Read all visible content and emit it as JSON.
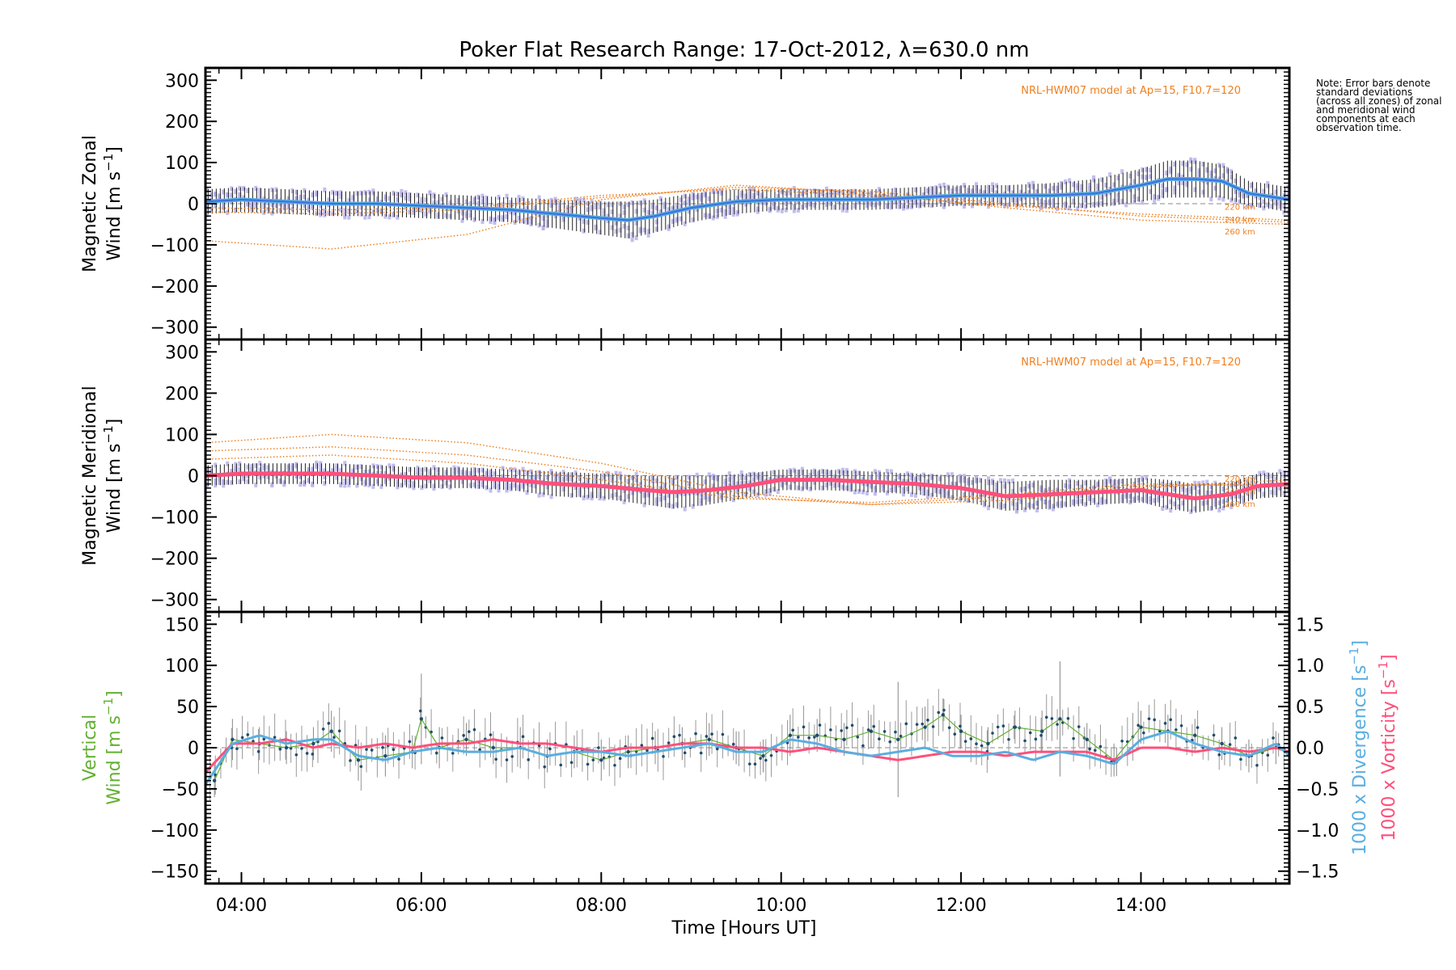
{
  "title": "Poker Flat Research Range: 17-Oct-2012, λ=630.0 nm",
  "note": "Note: Error bars denote standard deviations (across all zones) of zonal and meridional wind components at each observation time.",
  "xaxis": {
    "label": "Time [Hours UT]",
    "range": [
      3.6,
      15.65
    ],
    "ticks": [
      4,
      6,
      8,
      10,
      12,
      14
    ],
    "tick_labels": [
      "04:00",
      "06:00",
      "08:00",
      "10:00",
      "12:00",
      "14:00"
    ]
  },
  "colors": {
    "zonal_mean": "#3a6fe0",
    "zonal_smooth": "#5aaee0",
    "meridional_smooth": "#ff4f7b",
    "vertical": "#62b031",
    "divergence": "#5aaee0",
    "vorticity": "#ff4f7b",
    "model": "#f08020",
    "zones": "#b7b3ea"
  },
  "chart_data": [
    {
      "type": "line",
      "name": "zonal",
      "ylabel_line1": "Magnetic Zonal",
      "ylabel_line2": "Wind [m s",
      "ylabel_sup": "−1",
      "ylabel_end": "]",
      "ylim": [
        -330,
        330
      ],
      "yticks": [
        -300,
        -200,
        -100,
        0,
        100,
        200,
        300
      ],
      "ytick_labels": [
        "−300",
        "−200",
        "−100",
        "0",
        "100",
        "200",
        "300"
      ],
      "model_label": "NRL-HWM07 model at Ap=15, F10.7=120",
      "model_curves": [
        {
          "label": "220 km",
          "x": [
            3.6,
            5.0,
            6.5,
            8.0,
            9.5,
            11.0,
            12.5,
            14.0,
            15.65
          ],
          "y": [
            -90,
            -110,
            -75,
            10,
            45,
            25,
            -10,
            -40,
            -50
          ]
        },
        {
          "label": "240 km",
          "x": [
            3.6,
            5.0,
            6.5,
            8.0,
            9.5,
            11.0,
            12.5,
            14.0,
            15.65
          ],
          "y": [
            -20,
            -25,
            -15,
            15,
            40,
            30,
            0,
            -30,
            -45
          ]
        },
        {
          "label": "260 km",
          "x": [
            3.6,
            5.0,
            6.5,
            8.0,
            9.5,
            11.0,
            12.5,
            14.0,
            15.65
          ],
          "y": [
            -10,
            -15,
            -10,
            20,
            35,
            20,
            -5,
            -25,
            -40
          ]
        }
      ],
      "mean_series": {
        "x": [
          3.6,
          4.0,
          4.5,
          5.0,
          5.5,
          6.0,
          6.5,
          7.0,
          7.5,
          8.0,
          8.3,
          8.6,
          9.0,
          9.5,
          10.0,
          10.5,
          11.0,
          11.5,
          12.0,
          12.5,
          13.0,
          13.5,
          14.0,
          14.3,
          14.6,
          14.9,
          15.2,
          15.65
        ],
        "y": [
          5,
          10,
          5,
          0,
          0,
          -5,
          -10,
          -15,
          -25,
          -35,
          -40,
          -30,
          -10,
          5,
          10,
          10,
          10,
          15,
          20,
          20,
          20,
          25,
          45,
          60,
          60,
          55,
          25,
          10
        ],
        "sd": [
          30,
          30,
          30,
          30,
          30,
          30,
          30,
          30,
          35,
          40,
          45,
          40,
          35,
          30,
          25,
          25,
          25,
          25,
          25,
          25,
          30,
          35,
          40,
          45,
          45,
          40,
          30,
          30
        ]
      }
    },
    {
      "type": "line",
      "name": "meridional",
      "ylabel_line1": "Magnetic Meridional",
      "ylabel_line2": "Wind [m s",
      "ylabel_sup": "−1",
      "ylabel_end": "]",
      "ylim": [
        -330,
        330
      ],
      "yticks": [
        -300,
        -200,
        -100,
        0,
        100,
        200,
        300
      ],
      "ytick_labels": [
        "−300",
        "−200",
        "−100",
        "0",
        "100",
        "200",
        "300"
      ],
      "model_label": "NRL-HWM07 model at Ap=15, F10.7=120",
      "model_curves": [
        {
          "label": "220 km",
          "x": [
            3.6,
            5.0,
            6.5,
            8.0,
            9.5,
            11.0,
            12.5,
            14.0,
            15.65
          ],
          "y": [
            80,
            100,
            80,
            30,
            -40,
            -70,
            -60,
            -30,
            -10
          ]
        },
        {
          "label": "240 km",
          "x": [
            3.6,
            5.0,
            6.5,
            8.0,
            9.5,
            11.0,
            12.5,
            14.0,
            15.65
          ],
          "y": [
            60,
            70,
            50,
            10,
            -50,
            -70,
            -50,
            -25,
            -20
          ]
        },
        {
          "label": "260 km",
          "x": [
            3.6,
            5.0,
            6.5,
            8.0,
            9.5,
            11.0,
            12.5,
            14.0,
            15.65
          ],
          "y": [
            40,
            50,
            30,
            -10,
            -55,
            -65,
            -45,
            -20,
            -25
          ]
        }
      ],
      "mean_series": {
        "x": [
          3.6,
          4.0,
          4.5,
          5.0,
          5.5,
          6.0,
          6.5,
          7.0,
          7.5,
          8.0,
          8.5,
          8.8,
          9.2,
          9.6,
          10.0,
          10.5,
          11.0,
          11.5,
          12.0,
          12.5,
          13.0,
          13.5,
          14.0,
          14.3,
          14.6,
          15.0,
          15.3,
          15.65
        ],
        "y": [
          0,
          5,
          5,
          5,
          0,
          -5,
          -5,
          -10,
          -20,
          -25,
          -35,
          -40,
          -35,
          -25,
          -10,
          -10,
          -15,
          -20,
          -30,
          -50,
          -45,
          -40,
          -35,
          -45,
          -55,
          -45,
          -25,
          -20
        ],
        "sd": [
          25,
          25,
          25,
          25,
          25,
          25,
          25,
          25,
          30,
          30,
          35,
          40,
          35,
          30,
          25,
          25,
          25,
          25,
          30,
          35,
          35,
          30,
          30,
          35,
          35,
          30,
          30,
          30
        ]
      }
    },
    {
      "type": "line",
      "name": "vertical",
      "ylabel_line1": "Vertical",
      "ylabel_line2": "Wind [m s",
      "ylabel_sup": "−1",
      "ylabel_end": "]",
      "ylim": [
        -165,
        165
      ],
      "yticks": [
        -150,
        -100,
        -50,
        0,
        50,
        100,
        150
      ],
      "ytick_labels": [
        "−150",
        "−100",
        "−50",
        "0",
        "50",
        "100",
        "150"
      ],
      "y2lim": [
        -1.65,
        1.65
      ],
      "y2ticks": [
        -1.5,
        -1.0,
        -0.5,
        0.0,
        0.5,
        1.0,
        1.5
      ],
      "y2tick_labels": [
        "−1.5",
        "−1.0",
        "−0.5",
        "0.0",
        "0.5",
        "1.0",
        "1.5"
      ],
      "y2label_div": "1000 x Divergence [s",
      "y2label_vort": "1000 x Vorticity [s",
      "y2label_sup": "−1",
      "y2label_end": "]",
      "vertical_wind": {
        "x": [
          3.7,
          3.9,
          4.2,
          4.5,
          4.8,
          5.0,
          5.3,
          5.6,
          5.9,
          6.0,
          6.2,
          6.5,
          6.8,
          7.1,
          7.4,
          7.7,
          8.0,
          8.3,
          8.6,
          8.9,
          9.2,
          9.5,
          9.8,
          10.1,
          10.4,
          10.7,
          11.0,
          11.3,
          11.6,
          11.8,
          12.0,
          12.3,
          12.6,
          12.9,
          13.1,
          13.4,
          13.7,
          14.0,
          14.3,
          14.6,
          14.9,
          15.2,
          15.5
        ],
        "y": [
          -40,
          10,
          5,
          0,
          5,
          20,
          -15,
          -10,
          -5,
          35,
          0,
          10,
          0,
          0,
          -10,
          -5,
          -15,
          -5,
          0,
          5,
          10,
          0,
          -10,
          15,
          15,
          10,
          20,
          10,
          25,
          40,
          20,
          5,
          25,
          20,
          35,
          10,
          -15,
          25,
          20,
          15,
          5,
          -10,
          0
        ],
        "err": [
          20,
          25,
          20,
          20,
          20,
          25,
          25,
          25,
          20,
          55,
          25,
          20,
          20,
          25,
          20,
          20,
          25,
          20,
          20,
          20,
          20,
          20,
          20,
          25,
          20,
          20,
          20,
          70,
          25,
          20,
          20,
          20,
          20,
          25,
          70,
          20,
          20,
          20,
          20,
          20,
          20,
          20,
          20
        ]
      },
      "divergence": {
        "x": [
          3.6,
          3.9,
          4.2,
          4.5,
          4.8,
          5.0,
          5.3,
          5.6,
          5.9,
          6.2,
          6.5,
          6.8,
          7.1,
          7.4,
          7.7,
          8.0,
          8.3,
          8.6,
          8.9,
          9.2,
          9.5,
          9.8,
          10.1,
          10.4,
          10.7,
          11.0,
          11.3,
          11.6,
          11.9,
          12.2,
          12.5,
          12.8,
          13.1,
          13.4,
          13.7,
          14.0,
          14.3,
          14.6,
          14.9,
          15.2,
          15.5,
          15.65
        ],
        "y": [
          -0.45,
          0.05,
          0.15,
          0.05,
          0.1,
          0.1,
          -0.1,
          -0.15,
          -0.05,
          0.0,
          -0.05,
          -0.05,
          0.0,
          -0.1,
          -0.05,
          -0.05,
          -0.1,
          -0.05,
          0.0,
          0.05,
          -0.05,
          -0.05,
          0.1,
          0.05,
          -0.05,
          -0.1,
          -0.05,
          0.0,
          -0.1,
          -0.1,
          -0.05,
          -0.15,
          -0.05,
          -0.1,
          -0.2,
          0.1,
          0.2,
          0.05,
          -0.05,
          -0.1,
          0.05,
          -0.1
        ]
      },
      "vorticity": {
        "x": [
          3.6,
          3.9,
          4.2,
          4.5,
          4.8,
          5.0,
          5.3,
          5.6,
          5.9,
          6.2,
          6.5,
          6.8,
          7.1,
          7.4,
          7.7,
          8.0,
          8.3,
          8.6,
          8.9,
          9.2,
          9.5,
          9.8,
          10.1,
          10.4,
          10.7,
          11.0,
          11.3,
          11.6,
          11.9,
          12.2,
          12.5,
          12.8,
          13.1,
          13.4,
          13.7,
          14.0,
          14.3,
          14.6,
          14.9,
          15.2,
          15.5,
          15.65
        ],
        "y": [
          -0.3,
          0.05,
          0.05,
          0.1,
          0.0,
          0.05,
          0.0,
          0.05,
          0.0,
          0.05,
          0.05,
          0.1,
          0.05,
          0.05,
          0.0,
          -0.05,
          0.0,
          0.0,
          0.05,
          0.05,
          0.0,
          0.0,
          -0.05,
          0.0,
          -0.05,
          -0.1,
          -0.15,
          -0.1,
          -0.05,
          -0.05,
          -0.1,
          -0.05,
          -0.05,
          -0.05,
          -0.15,
          0.0,
          0.0,
          -0.05,
          0.0,
          -0.05,
          0.0,
          -0.05
        ]
      }
    }
  ]
}
